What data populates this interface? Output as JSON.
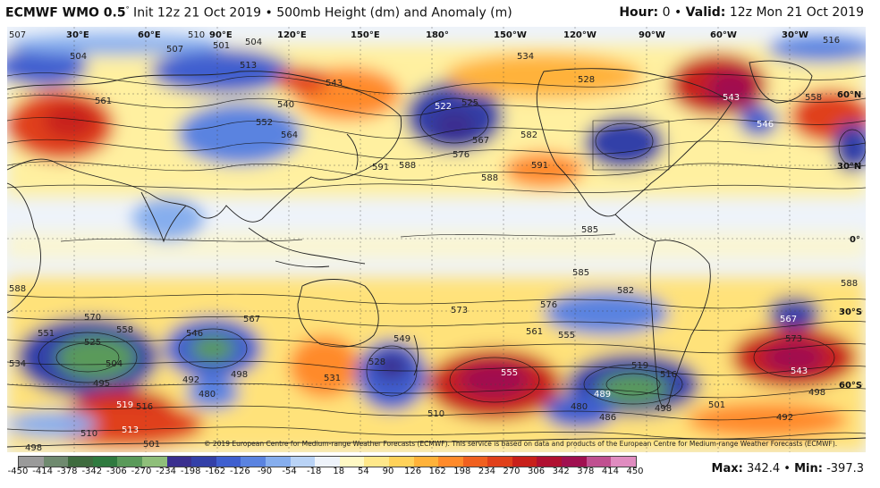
{
  "header": {
    "model": "ECMWF WMO 0.5",
    "degree": "°",
    "init": " Init 12z 21 Oct 2019 • 500mb Height (dm) and Anomaly (m)",
    "hour_label": "Hour:",
    "hour_value": " 0 • ",
    "valid_label": "Valid:",
    "valid_value": " 12z Mon 21 Oct 2019"
  },
  "map": {
    "longitudes": [
      "30°E",
      "60°E",
      "90°E",
      "120°E",
      "150°E",
      "180°",
      "150°W",
      "120°W",
      "90°W",
      "60°W",
      "30°W"
    ],
    "latitudes": [
      "60°N",
      "30°N",
      "0°",
      "30°S",
      "60°S"
    ],
    "height_labels": [
      "507",
      "504",
      "507",
      "510",
      "501",
      "504",
      "513",
      "534",
      "543",
      "540",
      "552",
      "564",
      "561",
      "528",
      "522",
      "525",
      "567",
      "576",
      "582",
      "591",
      "588",
      "591",
      "588",
      "585",
      "585",
      "582",
      "573",
      "576",
      "561",
      "555",
      "570",
      "558",
      "546",
      "551",
      "525",
      "504",
      "495",
      "498",
      "492",
      "480",
      "519",
      "516",
      "510",
      "513",
      "501",
      "534",
      "567",
      "531",
      "528",
      "549",
      "555",
      "510",
      "519",
      "516",
      "489",
      "480",
      "486",
      "498",
      "501",
      "573",
      "543",
      "498",
      "492",
      "567",
      "558",
      "546",
      "543",
      "516",
      "588",
      "588",
      "498"
    ],
    "copyright": "© 2019 European Centre for Medium-range Weather Forecasts (ECMWF). This service is based on data and products of the European Centre for Medium-range Weather Forecasts (ECMWF)."
  },
  "colorbar": {
    "ticks": [
      "-450",
      "-414",
      "-378",
      "-342",
      "-306",
      "-270",
      "-234",
      "-198",
      "-162",
      "-126",
      "-90",
      "-54",
      "-18",
      "18",
      "54",
      "90",
      "126",
      "162",
      "198",
      "234",
      "270",
      "306",
      "342",
      "378",
      "414",
      "450"
    ],
    "colors": [
      "#9a9a9a",
      "#6f8a6f",
      "#3e6b3e",
      "#2f7a3f",
      "#5a9a5a",
      "#8fbf7a",
      "#3a2f8f",
      "#3340a8",
      "#3f5fcf",
      "#5a83e0",
      "#86aeee",
      "#b9d3f6",
      "#eef3fa",
      "#fff9c4",
      "#ffe88a",
      "#ffd25a",
      "#ffb23a",
      "#ff8a2a",
      "#f0601f",
      "#e0401a",
      "#c8201a",
      "#b01030",
      "#a01050",
      "#c05090",
      "#e08cc0"
    ]
  },
  "stats": {
    "max_label": "Max:",
    "max_value": " 342.4 • ",
    "min_label": "Min:",
    "min_value": " -397.3"
  }
}
